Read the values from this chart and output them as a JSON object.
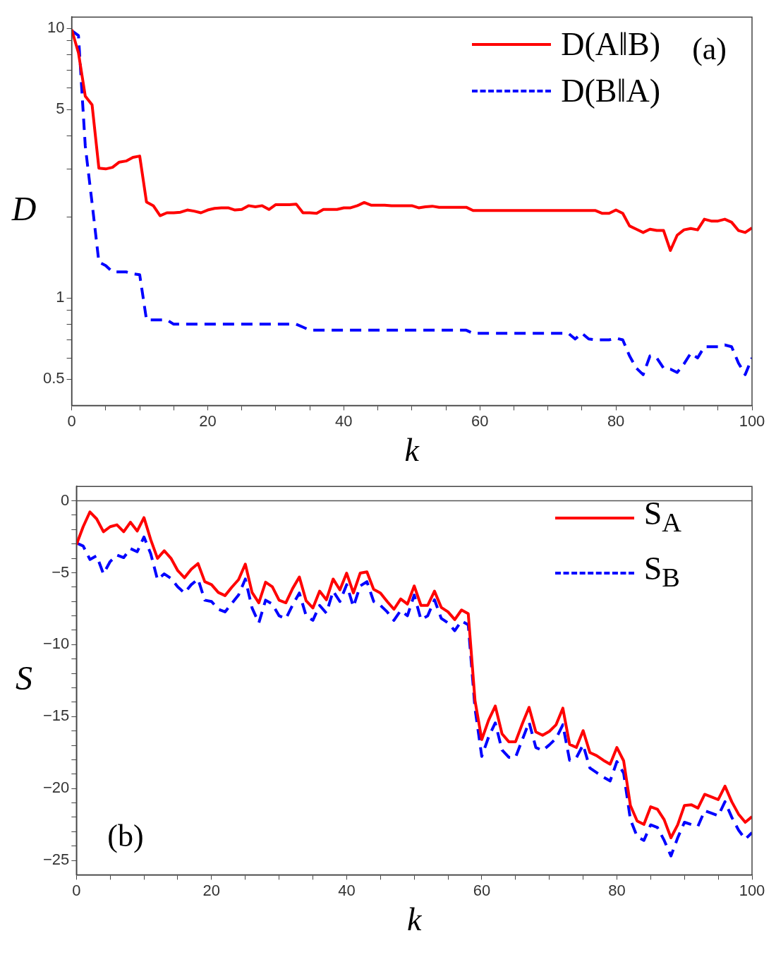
{
  "chart_data": [
    {
      "type": "line",
      "xlabel": "k",
      "ylabel": "D",
      "annotations": [
        "(a)"
      ],
      "legend": "top right",
      "log": true,
      "xlim": [
        0,
        100
      ],
      "ylim": [
        0.4,
        11
      ],
      "xticks": [
        0,
        {
          "value": 5,
          "label": null
        },
        {
          "value": 10,
          "label": null
        },
        {
          "value": 15,
          "label": null
        },
        20,
        {
          "value": 25,
          "label": null
        },
        {
          "value": 30,
          "label": null
        },
        {
          "value": 35,
          "label": null
        },
        40,
        {
          "value": 45,
          "label": null
        },
        {
          "value": 50,
          "label": null
        },
        {
          "value": 55,
          "label": null
        },
        60,
        {
          "value": 65,
          "label": null
        },
        {
          "value": 70,
          "label": null
        },
        {
          "value": 75,
          "label": null
        },
        80,
        {
          "value": 85,
          "label": null
        },
        {
          "value": 90,
          "label": null
        },
        {
          "value": 95,
          "label": null
        },
        100
      ],
      "yticks": [
        0.5,
        {
          "value": 0.6,
          "label": null
        },
        {
          "value": 0.7,
          "label": null
        },
        {
          "value": 0.8,
          "label": null
        },
        {
          "value": 0.9,
          "label": null
        },
        1,
        {
          "value": 2,
          "label": null
        },
        {
          "value": 3,
          "label": null
        },
        {
          "value": 4,
          "label": null
        },
        5,
        {
          "value": 6,
          "label": null
        },
        {
          "value": 7,
          "label": null
        },
        {
          "value": 8,
          "label": null
        },
        {
          "value": 9,
          "label": null
        },
        10
      ],
      "x": [
        0,
        1,
        2,
        3,
        4,
        5,
        6,
        7,
        8,
        9,
        10,
        11,
        12,
        13,
        14,
        15,
        16,
        17,
        18,
        19,
        20,
        21,
        22,
        23,
        24,
        25,
        26,
        27,
        28,
        29,
        30,
        31,
        32,
        33,
        34,
        35,
        36,
        37,
        38,
        39,
        40,
        41,
        42,
        43,
        44,
        45,
        46,
        47,
        48,
        49,
        50,
        51,
        52,
        53,
        54,
        55,
        56,
        57,
        58,
        59,
        60,
        61,
        62,
        63,
        64,
        65,
        66,
        67,
        68,
        69,
        70,
        71,
        72,
        73,
        74,
        75,
        76,
        77,
        78,
        79,
        80,
        81,
        82,
        83,
        84,
        85,
        86,
        87,
        88,
        89,
        90,
        91,
        92,
        93,
        94,
        95,
        96,
        97,
        98,
        99,
        100
      ],
      "series": [
        {
          "name": "D(A‖B)",
          "color": "#ff0000",
          "line_style": "solid",
          "values": [
            9.9,
            8.1,
            5.6,
            5.2,
            3.03,
            3.01,
            3.05,
            3.19,
            3.22,
            3.32,
            3.36,
            2.27,
            2.2,
            2.02,
            2.07,
            2.07,
            2.08,
            2.12,
            2.1,
            2.07,
            2.12,
            2.15,
            2.16,
            2.16,
            2.12,
            2.13,
            2.2,
            2.18,
            2.2,
            2.13,
            2.22,
            2.22,
            2.22,
            2.23,
            2.07,
            2.07,
            2.06,
            2.13,
            2.13,
            2.13,
            2.16,
            2.16,
            2.2,
            2.26,
            2.21,
            2.21,
            2.21,
            2.2,
            2.2,
            2.2,
            2.2,
            2.16,
            2.18,
            2.19,
            2.17,
            2.17,
            2.17,
            2.17,
            2.17,
            2.11,
            2.11,
            2.11,
            2.11,
            2.11,
            2.11,
            2.11,
            2.11,
            2.11,
            2.11,
            2.11,
            2.11,
            2.11,
            2.11,
            2.11,
            2.11,
            2.11,
            2.11,
            2.11,
            2.06,
            2.06,
            2.12,
            2.06,
            1.85,
            1.8,
            1.75,
            1.8,
            1.78,
            1.78,
            1.5,
            1.71,
            1.79,
            1.81,
            1.79,
            1.96,
            1.93,
            1.93,
            1.96,
            1.91,
            1.78,
            1.75,
            1.82
          ]
        },
        {
          "name": "D(B‖A)",
          "color": "#0000ff",
          "line_style": "dashed",
          "values": [
            9.8,
            9.4,
            3.66,
            2.25,
            1.36,
            1.32,
            1.25,
            1.25,
            1.25,
            1.23,
            1.22,
            0.83,
            0.83,
            0.83,
            0.83,
            0.8,
            0.8,
            0.8,
            0.8,
            0.8,
            0.8,
            0.8,
            0.8,
            0.8,
            0.8,
            0.8,
            0.8,
            0.8,
            0.8,
            0.8,
            0.8,
            0.8,
            0.8,
            0.8,
            0.78,
            0.76,
            0.76,
            0.76,
            0.76,
            0.76,
            0.76,
            0.76,
            0.76,
            0.76,
            0.76,
            0.76,
            0.76,
            0.76,
            0.76,
            0.76,
            0.76,
            0.76,
            0.76,
            0.76,
            0.76,
            0.76,
            0.76,
            0.76,
            0.76,
            0.74,
            0.74,
            0.74,
            0.74,
            0.74,
            0.74,
            0.74,
            0.74,
            0.74,
            0.74,
            0.74,
            0.74,
            0.74,
            0.74,
            0.74,
            0.705,
            0.74,
            0.705,
            0.7,
            0.7,
            0.7,
            0.71,
            0.7,
            0.61,
            0.55,
            0.52,
            0.61,
            0.6,
            0.55,
            0.545,
            0.53,
            0.57,
            0.625,
            0.6,
            0.66,
            0.66,
            0.66,
            0.67,
            0.66,
            0.575,
            0.52,
            0.6
          ]
        }
      ]
    },
    {
      "type": "line",
      "xlabel": "k",
      "ylabel": "S",
      "annotations": [
        "(b)"
      ],
      "legend": "top right",
      "xlim": [
        0,
        100
      ],
      "ylim": [
        -26,
        1
      ],
      "xticks": [
        0,
        {
          "value": 5,
          "label": null
        },
        {
          "value": 10,
          "label": null
        },
        {
          "value": 15,
          "label": null
        },
        20,
        {
          "value": 25,
          "label": null
        },
        {
          "value": 30,
          "label": null
        },
        {
          "value": 35,
          "label": null
        },
        40,
        {
          "value": 45,
          "label": null
        },
        {
          "value": 50,
          "label": null
        },
        {
          "value": 55,
          "label": null
        },
        60,
        {
          "value": 65,
          "label": null
        },
        {
          "value": 70,
          "label": null
        },
        {
          "value": 75,
          "label": null
        },
        80,
        {
          "value": 85,
          "label": null
        },
        {
          "value": 90,
          "label": null
        },
        {
          "value": 95,
          "label": null
        },
        100
      ],
      "yticks": [
        {
          "value": -25,
          "label": "−25"
        },
        {
          "value": -24,
          "label": null
        },
        {
          "value": -23,
          "label": null
        },
        {
          "value": -22,
          "label": null
        },
        {
          "value": -21,
          "label": null
        },
        {
          "value": -20,
          "label": "−20"
        },
        {
          "value": -19,
          "label": null
        },
        {
          "value": -18,
          "label": null
        },
        {
          "value": -17,
          "label": null
        },
        {
          "value": -16,
          "label": null
        },
        {
          "value": -15,
          "label": "−15"
        },
        {
          "value": -14,
          "label": null
        },
        {
          "value": -13,
          "label": null
        },
        {
          "value": -12,
          "label": null
        },
        {
          "value": -11,
          "label": null
        },
        {
          "value": -10,
          "label": "−10"
        },
        {
          "value": -9,
          "label": null
        },
        {
          "value": -8,
          "label": null
        },
        {
          "value": -7,
          "label": null
        },
        {
          "value": -6,
          "label": null
        },
        {
          "value": -5,
          "label": "−5"
        },
        {
          "value": -4,
          "label": null
        },
        {
          "value": -3,
          "label": null
        },
        {
          "value": -2,
          "label": null
        },
        {
          "value": -1,
          "label": null
        },
        0
      ],
      "ref_lines": [
        {
          "axis": "y",
          "value": 0,
          "color": "#555555"
        }
      ],
      "x": [
        0,
        1,
        2,
        3,
        4,
        5,
        6,
        7,
        8,
        9,
        10,
        11,
        12,
        13,
        14,
        15,
        16,
        17,
        18,
        19,
        20,
        21,
        22,
        23,
        24,
        25,
        26,
        27,
        28,
        29,
        30,
        31,
        32,
        33,
        34,
        35,
        36,
        37,
        38,
        39,
        40,
        41,
        42,
        43,
        44,
        45,
        46,
        47,
        48,
        49,
        50,
        51,
        52,
        53,
        54,
        55,
        56,
        57,
        58,
        59,
        60,
        61,
        62,
        63,
        64,
        65,
        66,
        67,
        68,
        69,
        70,
        71,
        72,
        73,
        74,
        75,
        76,
        77,
        78,
        79,
        80,
        81,
        82,
        83,
        84,
        85,
        86,
        87,
        88,
        89,
        90,
        91,
        92,
        93,
        94,
        95,
        96,
        97,
        98,
        99,
        100
      ],
      "series": [
        {
          "name": "S$_{A}$",
          "color": "#ff0000",
          "line_style": "solid",
          "values": [
            -3.05,
            -1.8,
            -0.77,
            -1.26,
            -2.15,
            -1.8,
            -1.67,
            -2.15,
            -1.49,
            -2.1,
            -1.17,
            -2.7,
            -4.0,
            -3.47,
            -4.0,
            -4.85,
            -5.35,
            -4.76,
            -4.36,
            -5.62,
            -5.83,
            -6.37,
            -6.59,
            -6.01,
            -5.48,
            -4.4,
            -6.37,
            -7.09,
            -5.66,
            -5.98,
            -6.91,
            -7.09,
            -6.1,
            -5.3,
            -6.95,
            -7.45,
            -6.28,
            -6.88,
            -5.44,
            -6.19,
            -5.03,
            -6.41,
            -5.03,
            -4.94,
            -6.16,
            -6.41,
            -7.0,
            -7.54,
            -6.82,
            -7.18,
            -5.92,
            -7.27,
            -7.27,
            -6.28,
            -7.41,
            -7.72,
            -8.26,
            -7.59,
            -7.85,
            -13.9,
            -16.6,
            -15.26,
            -14.27,
            -16.2,
            -16.75,
            -16.75,
            -15.5,
            -14.36,
            -16.07,
            -16.3,
            -16.03,
            -15.57,
            -14.42,
            -16.93,
            -17.15,
            -15.98,
            -17.5,
            -17.72,
            -18.04,
            -18.31,
            -17.15,
            -18.08,
            -21.18,
            -22.26,
            -22.5,
            -21.27,
            -21.45,
            -22.17,
            -23.43,
            -22.53,
            -21.18,
            -21.13,
            -21.36,
            -20.41,
            -20.59,
            -20.77,
            -19.84,
            -20.92,
            -21.78,
            -22.35,
            -21.96
          ]
        },
        {
          "name": "S$_{B}$",
          "color": "#0000ff",
          "line_style": "dashed",
          "values": [
            -2.93,
            -3.14,
            -4.08,
            -3.82,
            -5.08,
            -4.22,
            -3.77,
            -3.95,
            -3.32,
            -3.54,
            -2.51,
            -3.68,
            -5.48,
            -5.08,
            -5.39,
            -5.98,
            -6.41,
            -5.83,
            -5.44,
            -6.91,
            -7.0,
            -7.54,
            -7.72,
            -7.13,
            -6.55,
            -5.44,
            -7.45,
            -8.49,
            -6.91,
            -7.18,
            -7.99,
            -8.2,
            -7.24,
            -6.41,
            -7.99,
            -8.31,
            -7.27,
            -7.81,
            -6.28,
            -7.0,
            -5.83,
            -7.36,
            -5.92,
            -5.62,
            -7.0,
            -7.27,
            -7.72,
            -8.31,
            -7.63,
            -7.99,
            -6.55,
            -8.26,
            -7.99,
            -6.88,
            -8.17,
            -8.49,
            -9.03,
            -8.35,
            -8.62,
            -14.45,
            -17.77,
            -16.43,
            -15.44,
            -17.33,
            -17.83,
            -17.83,
            -16.61,
            -15.39,
            -17.15,
            -17.36,
            -16.97,
            -16.52,
            -15.57,
            -18.04,
            -17.86,
            -16.97,
            -18.58,
            -18.9,
            -19.21,
            -19.48,
            -18.13,
            -18.94,
            -22.17,
            -23.34,
            -23.61,
            -22.53,
            -22.71,
            -23.61,
            -24.69,
            -23.43,
            -22.35,
            -22.5,
            -22.62,
            -21.54,
            -21.72,
            -21.9,
            -20.92,
            -22.0,
            -22.89,
            -23.52,
            -23.07
          ]
        }
      ]
    }
  ]
}
